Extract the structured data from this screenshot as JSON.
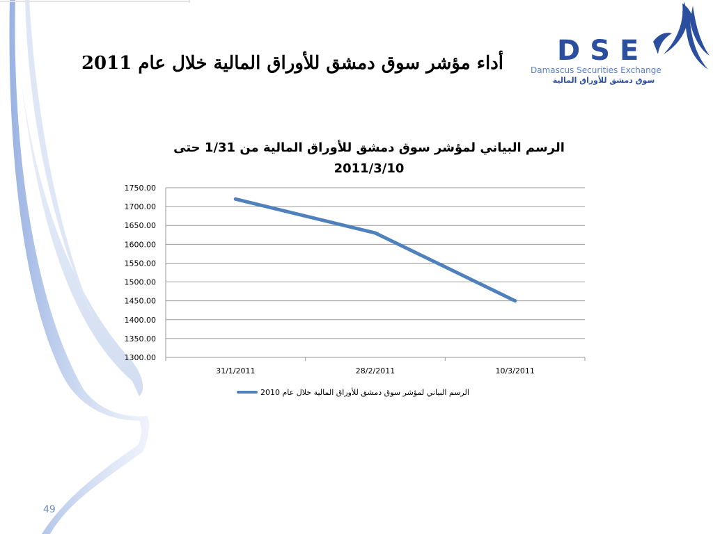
{
  "slide": {
    "title": "أداء مؤشر سوق دمشق للأوراق المالية خلال عام 2011",
    "page_number": "49"
  },
  "logo": {
    "letters": "DSE",
    "english": "Damascus Securities Exchange",
    "arabic": "سوق دمشق للأوراق المالية"
  },
  "colors": {
    "series_line": "#4f81bd",
    "gridline": "#9a9a9a",
    "decor_blue": "#7a9bd4"
  },
  "chart_data": {
    "type": "line",
    "title": "الرسم البياني لمؤشر سوق دمشق للأوراق المالية من 1/31 حتى 2011/3/10",
    "title_lines": [
      "الرسم البياني لمؤشر سوق دمشق للأوراق المالية من 1/31 حتى",
      "2011/3/10"
    ],
    "categories": [
      "31/1/2011",
      "28/2/2011",
      "10/3/2011"
    ],
    "series": [
      {
        "name": "الرسم البياني لمؤشر سوق دمشق للأوراق المالية خلال عام 2010",
        "values": [
          1720,
          1630,
          1450
        ]
      }
    ],
    "ylim": [
      1300,
      1750
    ],
    "yticks": [
      "1300.00",
      "1350.00",
      "1400.00",
      "1450.00",
      "1500.00",
      "1550.00",
      "1600.00",
      "1650.00",
      "1700.00",
      "1750.00"
    ],
    "ytick_values": [
      1300,
      1350,
      1400,
      1450,
      1500,
      1550,
      1600,
      1650,
      1700,
      1750
    ],
    "grid": true,
    "legend_position": "bottom"
  }
}
